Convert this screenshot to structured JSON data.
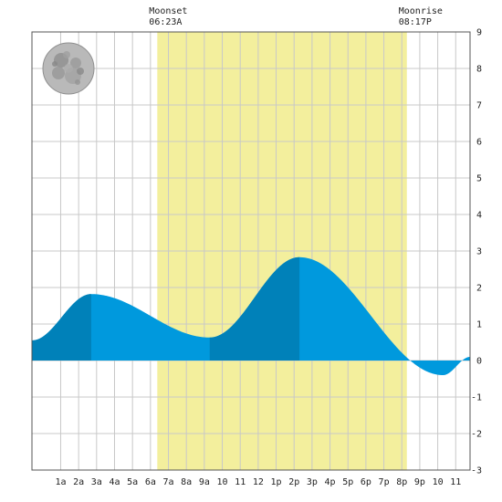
{
  "chart_data": {
    "type": "area",
    "x_unit": "hour of day",
    "xlim": [
      -0.6,
      23.8
    ],
    "ylim": [
      -3,
      9
    ],
    "y_ticks": [
      -3,
      -2,
      -1,
      0,
      1,
      2,
      3,
      4,
      5,
      6,
      7,
      8,
      9
    ],
    "x_ticks": [
      {
        "x": 1,
        "label": "1a"
      },
      {
        "x": 2,
        "label": "2a"
      },
      {
        "x": 3,
        "label": "3a"
      },
      {
        "x": 4,
        "label": "4a"
      },
      {
        "x": 5,
        "label": "5a"
      },
      {
        "x": 6,
        "label": "6a"
      },
      {
        "x": 7,
        "label": "7a"
      },
      {
        "x": 8,
        "label": "8a"
      },
      {
        "x": 9,
        "label": "9a"
      },
      {
        "x": 10,
        "label": "10"
      },
      {
        "x": 11,
        "label": "11"
      },
      {
        "x": 12,
        "label": "12"
      },
      {
        "x": 13,
        "label": "1p"
      },
      {
        "x": 14,
        "label": "2p"
      },
      {
        "x": 15,
        "label": "3p"
      },
      {
        "x": 16,
        "label": "4p"
      },
      {
        "x": 17,
        "label": "5p"
      },
      {
        "x": 18,
        "label": "6p"
      },
      {
        "x": 19,
        "label": "7p"
      },
      {
        "x": 20,
        "label": "8p"
      },
      {
        "x": 21,
        "label": "9p"
      },
      {
        "x": 22,
        "label": "10"
      },
      {
        "x": 23,
        "label": "11"
      }
    ],
    "tide_extremes": [
      {
        "x": -0.6,
        "y": 0.55
      },
      {
        "x": 2.7,
        "y": 1.82
      },
      {
        "x": 9.3,
        "y": 0.63
      },
      {
        "x": 14.3,
        "y": 2.83
      },
      {
        "x": 22.3,
        "y": -0.4
      },
      {
        "x": 23.8,
        "y": 0.1
      }
    ],
    "darker_segments": [
      [
        -0.6,
        2.7
      ],
      [
        9.3,
        14.3
      ]
    ],
    "moon_up": [
      6.38,
      20.28
    ],
    "events": [
      {
        "title": "Moonset",
        "time": "06:23A",
        "x": 6.38
      },
      {
        "title": "Moonrise",
        "time": "08:17P",
        "x": 20.28
      }
    ],
    "grid": true,
    "colors": {
      "water": "#0099dd",
      "water_dark": "#0081b9",
      "moon_band": "#f3ef9d",
      "grid": "#c8c8c8",
      "frame": "#555555"
    },
    "moon_icon": "full-moon-icon"
  }
}
